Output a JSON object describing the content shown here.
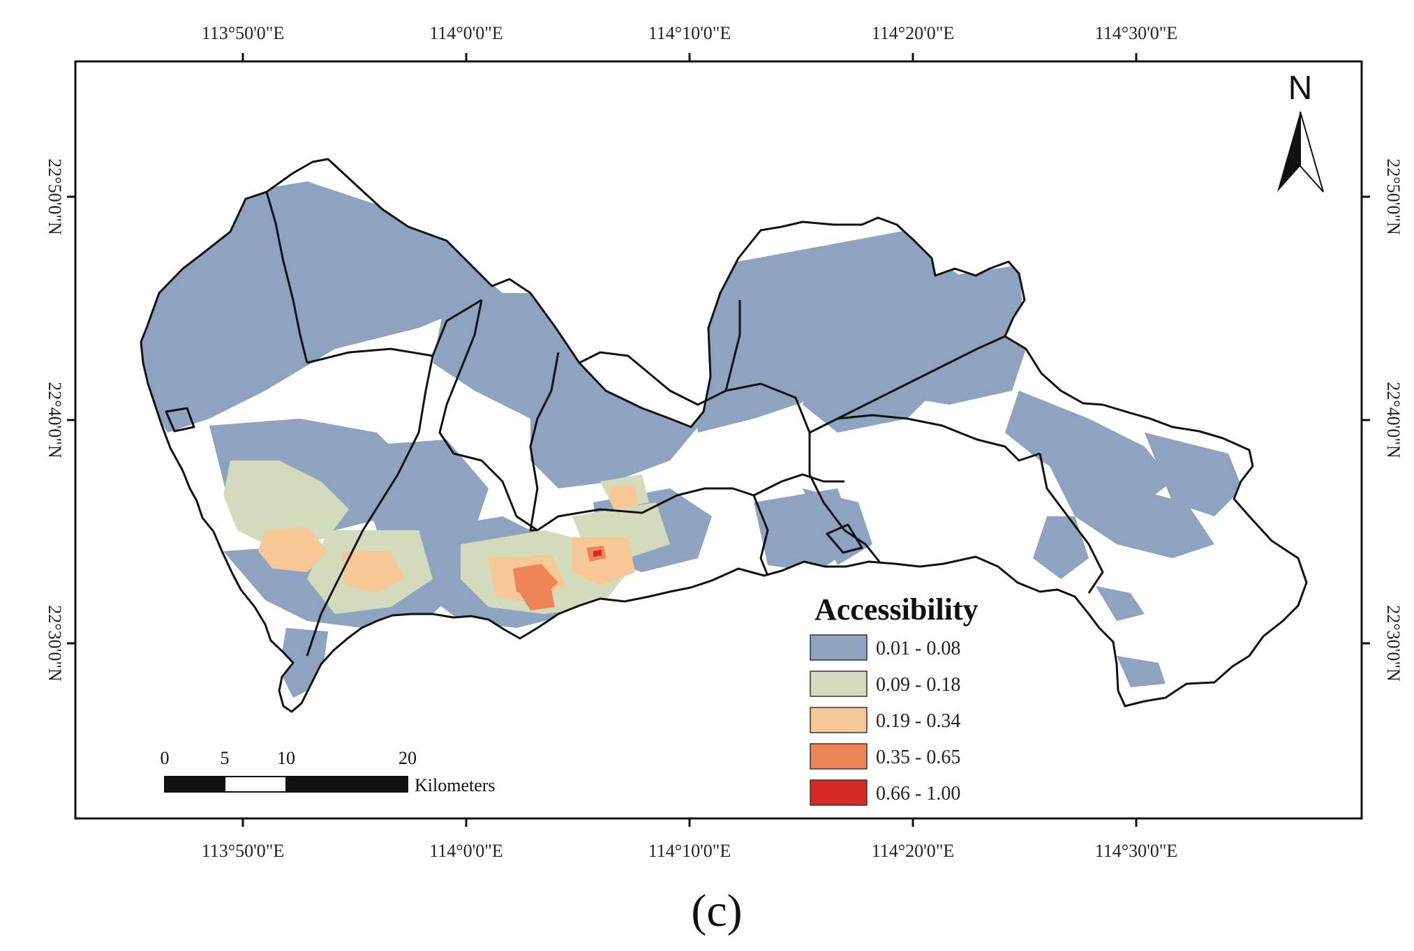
{
  "colors": {
    "class_1": "#8ea3bf",
    "class_2": "#d3dbbd",
    "class_3": "#f6c896",
    "class_4": "#ee8455",
    "class_5": "#d62b25",
    "boundary": "#111111"
  },
  "axes": {
    "top_ticks": [
      "113°50'0\"E",
      "114°0'0\"E",
      "114°10'0\"E",
      "114°20'0\"E",
      "114°30'0\"E"
    ],
    "bottom_ticks": [
      "113°50'0\"E",
      "114°0'0\"E",
      "114°10'0\"E",
      "114°20'0\"E",
      "114°30'0\"E"
    ],
    "left_ticks": [
      "22°50'0\"N",
      "22°40'0\"N",
      "22°30'0\"N"
    ],
    "right_ticks": [
      "22°50'0\"N",
      "22°40'0\"N",
      "22°30'0\"N"
    ]
  },
  "north_arrow": {
    "label": "N"
  },
  "legend": {
    "title": "Accessibility",
    "items": [
      {
        "label": "0.01 - 0.08",
        "color": "#8ea3bf"
      },
      {
        "label": "0.09 - 0.18",
        "color": "#d3dbbd"
      },
      {
        "label": "0.19 - 0.34",
        "color": "#f6c896"
      },
      {
        "label": "0.35 - 0.65",
        "color": "#ee8455"
      },
      {
        "label": "0.66 - 1.00",
        "color": "#d62b25"
      }
    ]
  },
  "scale_bar": {
    "ticks": [
      "0",
      "5",
      "10",
      "20"
    ],
    "units": "Kilometers"
  },
  "panel_label": "(c)"
}
